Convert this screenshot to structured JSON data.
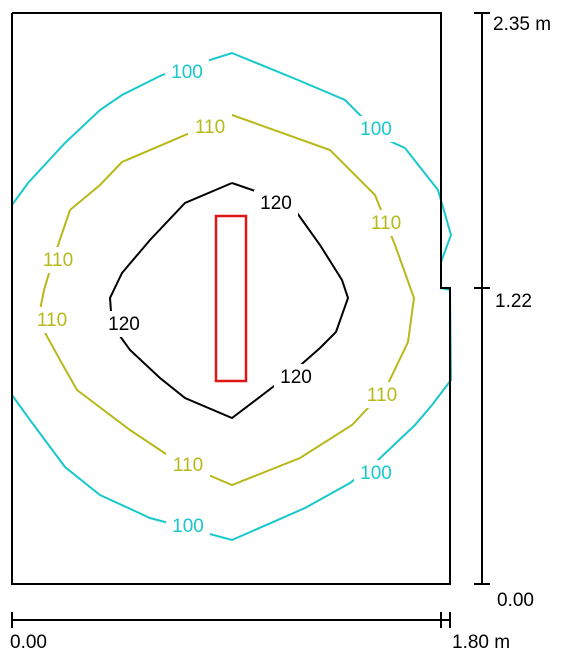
{
  "plot": {
    "contours": [
      {
        "level": 100,
        "label": "100",
        "color": "#17c8cc"
      },
      {
        "level": 110,
        "label": "110",
        "color": "#b8b81c"
      },
      {
        "level": 120,
        "label": "120",
        "color": "#000000"
      }
    ],
    "luminaire_color": "#e01515",
    "outline_color": "#000000"
  },
  "axes": {
    "y_top_label": "2.35 m",
    "y_mid_label": "1.22",
    "y_bottom_label": "0.00",
    "x_left_label": "0.00",
    "x_right_label": "1.80 m"
  }
}
